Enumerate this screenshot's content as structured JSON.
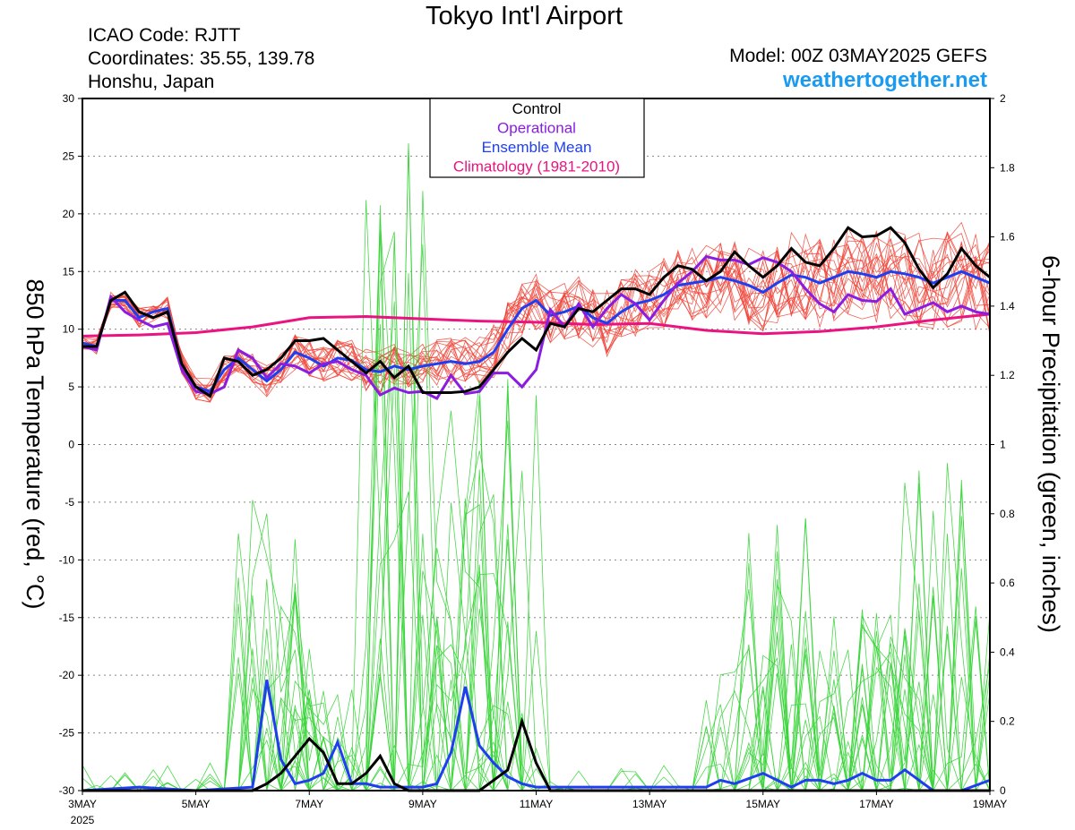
{
  "header": {
    "title": "Tokyo Int'l Airport",
    "icao": "ICAO Code: RJTT",
    "coordinates": "Coordinates: 35.55, 139.78",
    "region": "Honshu, Japan",
    "model": "Model: 00Z 03MAY2025 GEFS",
    "site": "weathertogether.net"
  },
  "colors": {
    "members_temp": "#f0453a",
    "members_precip": "#36d436",
    "control": "#000000",
    "operational": "#8a1de0",
    "mean": "#1f3ef0",
    "climatology": "#ea1480",
    "site": "#1a9bf0"
  },
  "chart_data": {
    "type": "line",
    "legend": [
      "Control",
      "Operational",
      "Ensemble Mean",
      "Climatology (1981-2010)"
    ],
    "legend_position": "top-center",
    "grid": "dotted horizontal",
    "x_axis": {
      "start": "3MAY 2025",
      "end": "19MAY",
      "unit": "days",
      "range": [
        0,
        16
      ],
      "ticks": [
        {
          "x": 0,
          "label": "3MAY",
          "sub": "2025"
        },
        {
          "x": 2,
          "label": "5MAY"
        },
        {
          "x": 4,
          "label": "7MAY"
        },
        {
          "x": 6,
          "label": "9MAY"
        },
        {
          "x": 8,
          "label": "11MAY"
        },
        {
          "x": 10,
          "label": "13MAY"
        },
        {
          "x": 12,
          "label": "15MAY"
        },
        {
          "x": 14,
          "label": "17MAY"
        },
        {
          "x": 16,
          "label": "19MAY"
        }
      ]
    },
    "y_left": {
      "label": "850 hPa Temperature (red, °C)",
      "range": [
        -30,
        30
      ],
      "ticks": [
        -30,
        -25,
        -20,
        -15,
        -10,
        -5,
        0,
        5,
        10,
        15,
        20,
        25,
        30
      ]
    },
    "y_right": {
      "label": "6-hour Precipitation (green, inches)",
      "range": [
        0,
        2
      ],
      "ticks": [
        0,
        0.2,
        0.4,
        0.6,
        0.8,
        1,
        1.2,
        1.4,
        1.6,
        1.8,
        2
      ]
    },
    "temperature": {
      "control": [
        [
          0,
          8.5
        ],
        [
          0.25,
          8.5
        ],
        [
          0.5,
          12.5
        ],
        [
          0.75,
          13.2
        ],
        [
          1,
          11.5
        ],
        [
          1.25,
          11
        ],
        [
          1.5,
          11.5
        ],
        [
          1.75,
          7
        ],
        [
          2,
          5
        ],
        [
          2.25,
          4.2
        ],
        [
          2.5,
          7.5
        ],
        [
          2.75,
          7.2
        ],
        [
          3,
          6
        ],
        [
          3.25,
          6.5
        ],
        [
          3.5,
          7.5
        ],
        [
          3.75,
          9
        ],
        [
          4,
          9
        ],
        [
          4.25,
          9.2
        ],
        [
          4.5,
          8.2
        ],
        [
          4.75,
          7.2
        ],
        [
          5,
          6.2
        ],
        [
          5.25,
          7.2
        ],
        [
          5.5,
          5.8
        ],
        [
          5.75,
          6.8
        ],
        [
          6,
          4.5
        ],
        [
          6.25,
          4.5
        ],
        [
          6.5,
          4.5
        ],
        [
          6.75,
          4.6
        ],
        [
          7,
          5
        ],
        [
          7.25,
          6.5
        ],
        [
          7.5,
          8
        ],
        [
          7.75,
          9.2
        ],
        [
          8,
          8.2
        ],
        [
          8.25,
          10.5
        ],
        [
          8.5,
          10.2
        ],
        [
          8.75,
          11.8
        ],
        [
          9,
          11.5
        ],
        [
          9.25,
          12.5
        ],
        [
          9.5,
          13.5
        ],
        [
          9.75,
          13.5
        ],
        [
          10,
          13
        ],
        [
          10.25,
          14.5
        ],
        [
          10.5,
          15.5
        ],
        [
          10.75,
          15.2
        ],
        [
          11,
          14.2
        ],
        [
          11.25,
          15
        ],
        [
          11.5,
          16.7
        ],
        [
          11.75,
          15.5
        ],
        [
          12,
          14.5
        ],
        [
          12.25,
          15.5
        ],
        [
          12.5,
          17
        ],
        [
          12.75,
          15.8
        ],
        [
          13,
          15.5
        ],
        [
          13.25,
          17
        ],
        [
          13.5,
          18.8
        ],
        [
          13.75,
          18
        ],
        [
          14,
          18.1
        ],
        [
          14.25,
          18.8
        ],
        [
          14.5,
          17.5
        ],
        [
          14.75,
          15.2
        ],
        [
          15,
          13.6
        ],
        [
          15.25,
          14.8
        ],
        [
          15.5,
          17
        ],
        [
          15.75,
          15.5
        ],
        [
          16,
          14.5
        ]
      ],
      "operational": [
        [
          0,
          8.5
        ],
        [
          0.25,
          8.2
        ],
        [
          0.5,
          12.8
        ],
        [
          0.75,
          11.5
        ],
        [
          1,
          10.8
        ],
        [
          1.25,
          10.2
        ],
        [
          1.5,
          10.5
        ],
        [
          1.75,
          6.5
        ],
        [
          2,
          4.6
        ],
        [
          2.25,
          4.4
        ],
        [
          2.5,
          5
        ],
        [
          2.75,
          8.2
        ],
        [
          3,
          7.5
        ],
        [
          3.25,
          5.8
        ],
        [
          3.5,
          7
        ],
        [
          3.75,
          6.8
        ],
        [
          4,
          6.2
        ],
        [
          4.25,
          7
        ],
        [
          4.5,
          7.2
        ],
        [
          4.75,
          6.5
        ],
        [
          5,
          6
        ],
        [
          5.25,
          4.3
        ],
        [
          5.5,
          4.9
        ],
        [
          5.75,
          4.5
        ],
        [
          6,
          4.6
        ],
        [
          6.25,
          4
        ],
        [
          6.5,
          6
        ],
        [
          6.75,
          4.4
        ],
        [
          7,
          4.6
        ],
        [
          7.25,
          6.2
        ],
        [
          7.5,
          6.2
        ],
        [
          7.75,
          5
        ],
        [
          8,
          6.5
        ],
        [
          8.25,
          11.7
        ],
        [
          8.5,
          10.2
        ],
        [
          8.75,
          12.2
        ],
        [
          9,
          10.2
        ],
        [
          9.25,
          11.8
        ],
        [
          9.5,
          13
        ],
        [
          9.75,
          12.2
        ],
        [
          10,
          10.8
        ],
        [
          10.25,
          12.5
        ],
        [
          10.5,
          14
        ],
        [
          10.75,
          15
        ],
        [
          11,
          16.3
        ],
        [
          11.25,
          16
        ],
        [
          11.5,
          16
        ],
        [
          11.75,
          15.6
        ],
        [
          12,
          16.2
        ],
        [
          12.25,
          15.8
        ],
        [
          12.5,
          15
        ],
        [
          12.75,
          13.5
        ],
        [
          13,
          12.2
        ],
        [
          13.25,
          11.5
        ],
        [
          13.5,
          13
        ],
        [
          13.75,
          12.5
        ],
        [
          14,
          12.4
        ],
        [
          14.25,
          13.5
        ],
        [
          14.5,
          11.3
        ],
        [
          14.75,
          11.8
        ],
        [
          15,
          12.3
        ],
        [
          15.25,
          11.5
        ],
        [
          15.5,
          12
        ],
        [
          15.75,
          11.5
        ],
        [
          16,
          11.3
        ]
      ],
      "mean": [
        [
          0,
          8.8
        ],
        [
          0.25,
          8.5
        ],
        [
          0.5,
          12.5
        ],
        [
          0.75,
          12.5
        ],
        [
          1,
          11
        ],
        [
          1.25,
          11.5
        ],
        [
          1.5,
          11.8
        ],
        [
          1.75,
          7
        ],
        [
          2,
          5
        ],
        [
          2.25,
          4.6
        ],
        [
          2.5,
          6.5
        ],
        [
          2.75,
          7.5
        ],
        [
          3,
          6.5
        ],
        [
          3.25,
          5.5
        ],
        [
          3.5,
          6.5
        ],
        [
          3.75,
          8
        ],
        [
          4,
          7.5
        ],
        [
          4.25,
          6.8
        ],
        [
          4.5,
          7.5
        ],
        [
          4.75,
          7.3
        ],
        [
          5,
          6.5
        ],
        [
          5.25,
          6.3
        ],
        [
          5.5,
          6.8
        ],
        [
          5.75,
          6.5
        ],
        [
          6,
          6.8
        ],
        [
          6.25,
          7
        ],
        [
          6.5,
          7.2
        ],
        [
          6.75,
          7
        ],
        [
          7,
          7.2
        ],
        [
          7.25,
          8
        ],
        [
          7.5,
          10
        ],
        [
          7.75,
          11.8
        ],
        [
          8,
          12.5
        ],
        [
          8.25,
          11.2
        ],
        [
          8.5,
          11.5
        ],
        [
          8.75,
          12
        ],
        [
          9,
          11
        ],
        [
          9.25,
          10.5
        ],
        [
          9.5,
          11.5
        ],
        [
          9.75,
          12.2
        ],
        [
          10,
          12.5
        ],
        [
          10.25,
          13
        ],
        [
          10.5,
          13.8
        ],
        [
          10.75,
          14
        ],
        [
          11,
          14.2
        ],
        [
          11.25,
          14.5
        ],
        [
          11.5,
          14.2
        ],
        [
          11.75,
          13.8
        ],
        [
          12,
          13.2
        ],
        [
          12.25,
          14
        ],
        [
          12.5,
          14.7
        ],
        [
          12.75,
          14.5
        ],
        [
          13,
          14
        ],
        [
          13.25,
          14.5
        ],
        [
          13.5,
          15
        ],
        [
          13.75,
          14.8
        ],
        [
          14,
          14.5
        ],
        [
          14.25,
          15
        ],
        [
          14.5,
          14.8
        ],
        [
          14.75,
          14.5
        ],
        [
          15,
          14
        ],
        [
          15.25,
          14.5
        ],
        [
          15.5,
          15
        ],
        [
          15.75,
          14.5
        ],
        [
          16,
          14
        ]
      ],
      "climatology": [
        [
          0,
          9.4
        ],
        [
          1,
          9.5
        ],
        [
          2,
          9.7
        ],
        [
          3,
          10.2
        ],
        [
          4,
          11
        ],
        [
          5,
          11.1
        ],
        [
          6,
          10.9
        ],
        [
          7,
          10.7
        ],
        [
          8,
          10.6
        ],
        [
          9,
          10.4
        ],
        [
          10,
          10.5
        ],
        [
          11,
          9.9
        ],
        [
          12,
          9.6
        ],
        [
          13,
          9.8
        ],
        [
          14,
          10.2
        ],
        [
          15,
          10.8
        ],
        [
          16,
          11.3
        ]
      ]
    },
    "precipitation": {
      "control": [
        [
          0,
          0
        ],
        [
          2,
          0
        ],
        [
          3,
          0
        ],
        [
          3.25,
          0.02
        ],
        [
          3.5,
          0.05
        ],
        [
          3.75,
          0.1
        ],
        [
          4,
          0.15
        ],
        [
          4.25,
          0.11
        ],
        [
          4.5,
          0.02
        ],
        [
          4.75,
          0.02
        ],
        [
          5,
          0.05
        ],
        [
          5.25,
          0.1
        ],
        [
          5.5,
          0.02
        ],
        [
          5.75,
          0
        ],
        [
          7,
          0
        ],
        [
          7.25,
          0.03
        ],
        [
          7.5,
          0.06
        ],
        [
          7.75,
          0.2
        ],
        [
          8,
          0.08
        ],
        [
          8.25,
          0
        ],
        [
          16,
          0
        ]
      ],
      "mean": [
        [
          0,
          0
        ],
        [
          1,
          0.01
        ],
        [
          2,
          0
        ],
        [
          3,
          0.01
        ],
        [
          3.25,
          0.32
        ],
        [
          3.5,
          0.09
        ],
        [
          3.75,
          0.02
        ],
        [
          4,
          0.03
        ],
        [
          4.25,
          0.05
        ],
        [
          4.5,
          0.14
        ],
        [
          4.75,
          0.02
        ],
        [
          5,
          0.02
        ],
        [
          5.25,
          0.01
        ],
        [
          5.5,
          0.01
        ],
        [
          6,
          0.01
        ],
        [
          6.25,
          0.02
        ],
        [
          6.5,
          0.11
        ],
        [
          6.75,
          0.3
        ],
        [
          7,
          0.13
        ],
        [
          7.25,
          0.08
        ],
        [
          7.5,
          0.04
        ],
        [
          7.75,
          0.02
        ],
        [
          8,
          0.01
        ],
        [
          9,
          0.01
        ],
        [
          10,
          0.01
        ],
        [
          11,
          0.01
        ],
        [
          11.25,
          0.03
        ],
        [
          11.5,
          0.02
        ],
        [
          12,
          0.05
        ],
        [
          12.25,
          0.03
        ],
        [
          12.5,
          0.01
        ],
        [
          12.75,
          0.03
        ],
        [
          13,
          0.03
        ],
        [
          13.25,
          0.02
        ],
        [
          13.5,
          0.03
        ],
        [
          13.75,
          0.05
        ],
        [
          14,
          0.03
        ],
        [
          14.25,
          0.03
        ],
        [
          14.5,
          0.06
        ],
        [
          14.75,
          0.03
        ],
        [
          15,
          0
        ],
        [
          15.5,
          0
        ],
        [
          16,
          0.03
        ]
      ]
    }
  }
}
